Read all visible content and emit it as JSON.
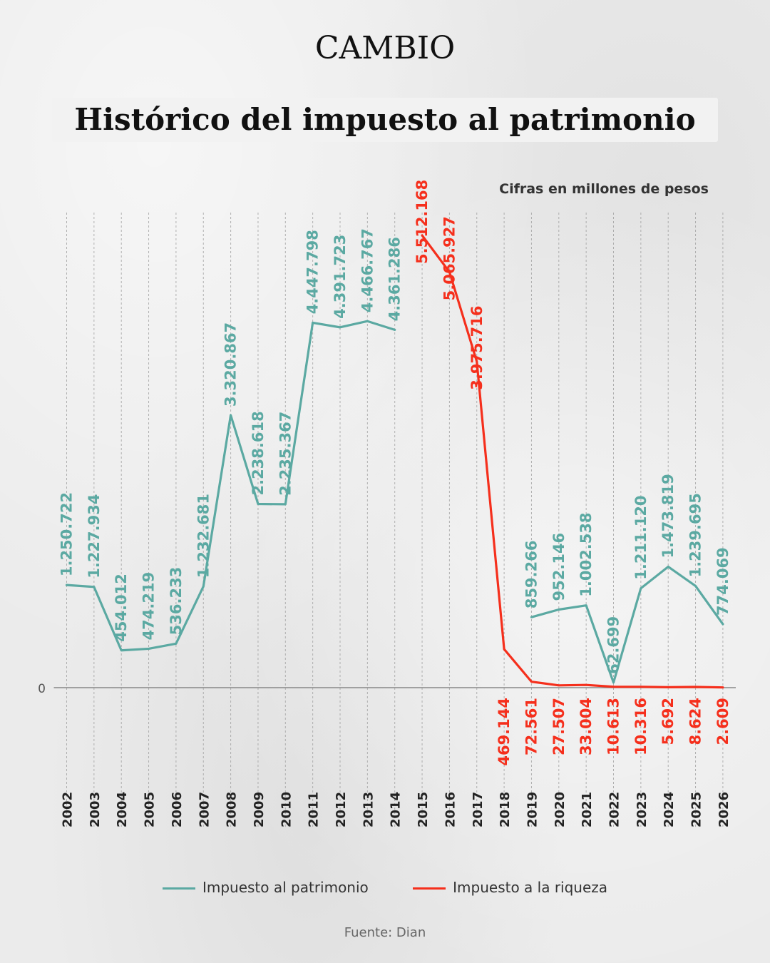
{
  "brand": "CAMBIO",
  "title": "Histórico del impuesto al patrimonio",
  "units_note": "Cifras en millones de pesos",
  "source": "Fuente: Dian",
  "colors": {
    "patrimonio": "#5ba9a2",
    "riqueza": "#f52f1c",
    "grid": "#9a9a9a",
    "axis": "#888888"
  },
  "chart_data": {
    "type": "line",
    "x": [
      "2002",
      "2003",
      "2004",
      "2005",
      "2006",
      "2007",
      "2008",
      "2009",
      "2010",
      "2011",
      "2012",
      "2013",
      "2014",
      "2015",
      "2016",
      "2017",
      "2018",
      "2019",
      "2020",
      "2021",
      "2022",
      "2023",
      "2024",
      "2025",
      "2026"
    ],
    "zero_label": "0",
    "series": [
      {
        "name": "Impuesto al patrimonio",
        "color": "#5ba9a2",
        "values": [
          1250722,
          1227934,
          454012,
          474219,
          536233,
          1232681,
          3320867,
          2238618,
          2235367,
          4447798,
          4391723,
          4466767,
          4361286,
          null,
          null,
          null,
          null,
          859266,
          952146,
          1002538,
          62699,
          1211120,
          1473819,
          1239695,
          774069
        ],
        "labels": [
          "1.250.722",
          "1.227.934",
          "454.012",
          "474.219",
          "536.233",
          "1.232.681",
          "3.320.867",
          "2.238.618",
          "2.235.367",
          "4.447.798",
          "4.391.723",
          "4.466.767",
          "4.361.286",
          null,
          null,
          null,
          null,
          "859.266",
          "952.146",
          "1.002.538",
          "62.699",
          "1.211.120",
          "1.473.819",
          "1.239.695",
          "774.069"
        ]
      },
      {
        "name": "Impuesto a la riqueza",
        "color": "#f52f1c",
        "values": [
          null,
          null,
          null,
          null,
          null,
          null,
          null,
          null,
          null,
          null,
          null,
          null,
          null,
          5512168,
          5065927,
          3975716,
          469144,
          72561,
          27507,
          33004,
          10613,
          10316,
          5692,
          8624,
          2609
        ],
        "labels": [
          null,
          null,
          null,
          null,
          null,
          null,
          null,
          null,
          null,
          null,
          null,
          null,
          null,
          "5.512.168",
          "5.065.927",
          "3.975.716",
          "469.144",
          "72.561",
          "27.507",
          "33.004",
          "10.613",
          "10.316",
          "5.692",
          "8.624",
          "2.609"
        ]
      }
    ],
    "ylim": [
      0,
      5512168
    ],
    "grid": "vertical-dashed",
    "legend_position": "bottom"
  }
}
